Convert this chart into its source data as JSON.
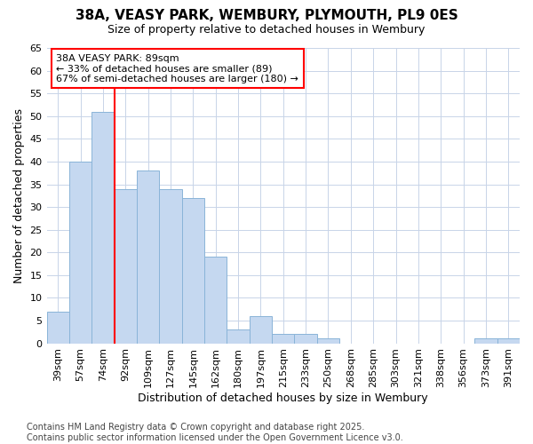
{
  "title": "38A, VEASY PARK, WEMBURY, PLYMOUTH, PL9 0ES",
  "subtitle": "Size of property relative to detached houses in Wembury",
  "xlabel": "Distribution of detached houses by size in Wembury",
  "ylabel": "Number of detached properties",
  "categories": [
    "39sqm",
    "57sqm",
    "74sqm",
    "92sqm",
    "109sqm",
    "127sqm",
    "145sqm",
    "162sqm",
    "180sqm",
    "197sqm",
    "215sqm",
    "233sqm",
    "250sqm",
    "268sqm",
    "285sqm",
    "303sqm",
    "321sqm",
    "338sqm",
    "356sqm",
    "373sqm",
    "391sqm"
  ],
  "values": [
    7,
    40,
    51,
    34,
    38,
    34,
    32,
    19,
    3,
    6,
    2,
    2,
    1,
    0,
    0,
    0,
    0,
    0,
    0,
    1,
    1
  ],
  "bar_color": "#c5d8f0",
  "bar_edge_color": "#8ab4d8",
  "vline_x_index": 3,
  "vline_color": "red",
  "annotation_text": "38A VEASY PARK: 89sqm\n← 33% of detached houses are smaller (89)\n67% of semi-detached houses are larger (180) →",
  "annotation_box_facecolor": "white",
  "annotation_box_edgecolor": "red",
  "ylim": [
    0,
    65
  ],
  "yticks": [
    0,
    5,
    10,
    15,
    20,
    25,
    30,
    35,
    40,
    45,
    50,
    55,
    60,
    65
  ],
  "footnote": "Contains HM Land Registry data © Crown copyright and database right 2025.\nContains public sector information licensed under the Open Government Licence v3.0.",
  "background_color": "#ffffff",
  "grid_color": "#c8d4e8",
  "title_fontsize": 11,
  "subtitle_fontsize": 9,
  "xlabel_fontsize": 9,
  "ylabel_fontsize": 9,
  "tick_fontsize": 8,
  "annot_fontsize": 8,
  "footnote_fontsize": 7
}
